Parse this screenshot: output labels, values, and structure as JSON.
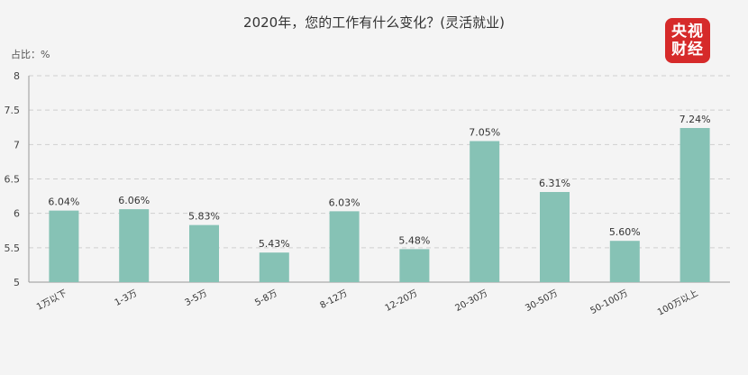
{
  "header": {
    "title": "2020年，您的工作有什么变化？(灵活就业)",
    "unit_label": "占比：%",
    "logo_lines": [
      "央视",
      "财经"
    ]
  },
  "colors": {
    "bar": "#86c2b5",
    "grid": "#cfcfcf",
    "axis": "#999999",
    "logo": "#d62a2a"
  },
  "chart_data": {
    "type": "bar",
    "title": "2020年，您的工作有什么变化？(灵活就业)",
    "ylabel": "占比：%",
    "xlabel": "",
    "ylim": [
      5,
      8
    ],
    "yticks": [
      "5",
      "5.5",
      "6",
      "6.5",
      "7",
      "7.5",
      "8"
    ],
    "categories": [
      "1万以下",
      "1-3万",
      "3-5万",
      "5-8万",
      "8-12万",
      "12-20万",
      "20-30万",
      "30-50万",
      "50-100万",
      "100万以上"
    ],
    "values": [
      6.04,
      6.06,
      5.83,
      5.43,
      6.03,
      5.48,
      7.05,
      6.31,
      5.6,
      7.24
    ],
    "value_labels": [
      "6.04%",
      "6.06%",
      "5.83%",
      "5.43%",
      "6.03%",
      "5.48%",
      "7.05%",
      "6.31%",
      "5.60%",
      "7.24%"
    ],
    "grid": true,
    "legend": "none"
  }
}
